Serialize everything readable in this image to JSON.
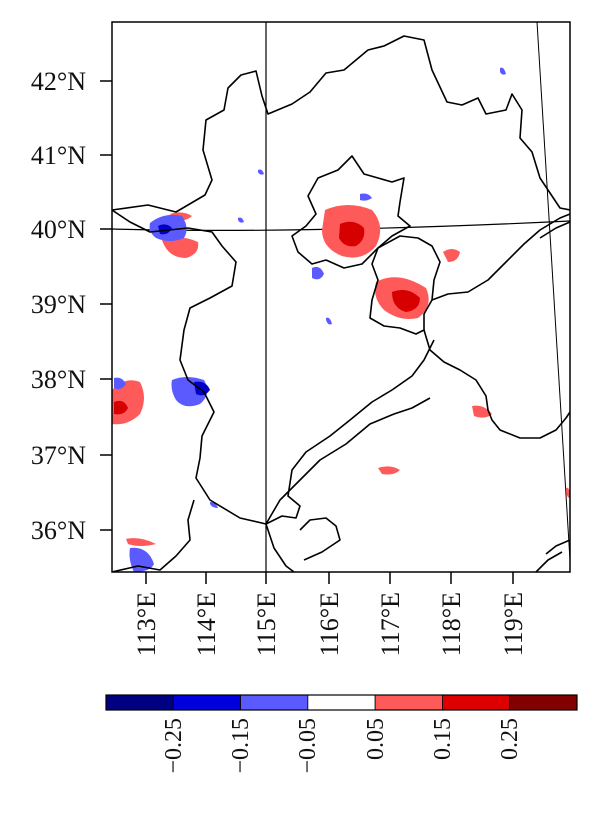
{
  "map": {
    "lat_labels": [
      "42°N",
      "41°N",
      "40°N",
      "39°N",
      "38°N",
      "37°N",
      "36°N"
    ],
    "lon_labels": [
      "113°E",
      "114°E",
      "115°E",
      "116°E",
      "117°E",
      "118°E",
      "119°E"
    ],
    "extent": {
      "lon": [
        112.45,
        120.0
      ],
      "lat": [
        35.4,
        42.8
      ]
    },
    "grid": "lines at 115°E and 40°N",
    "colors": {
      "border": "#000000",
      "red": "#ff5a5a",
      "dark_red": "#d60000",
      "blue": "#5a5aff",
      "dark_blue": "#0000c8"
    }
  },
  "colorbar": {
    "ticks": [
      "−0.25",
      "−0.15",
      "−0.05",
      "0.05",
      "0.15",
      "0.25"
    ],
    "bins": [
      {
        "color": "#000080"
      },
      {
        "color": "#0000dc"
      },
      {
        "color": "#5a5aff"
      },
      {
        "color": "#ffffff"
      },
      {
        "color": "#ff5a5a"
      },
      {
        "color": "#dc0000"
      },
      {
        "color": "#820000"
      }
    ]
  }
}
